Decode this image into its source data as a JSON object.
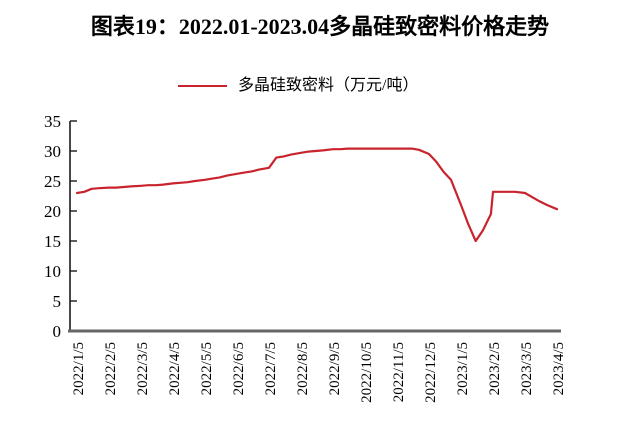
{
  "title": "图表19：2022.01-2023.04多晶硅致密料价格走势",
  "legend": {
    "label": "多晶硅致密料（万元/吨）",
    "swatch_color": "#C9242D"
  },
  "colors": {
    "line": "#C9242D",
    "y_axis": "#1a1a1a",
    "x_baseline": "#666666",
    "text": "#000000",
    "background": "#ffffff"
  },
  "chart_data": {
    "type": "line",
    "title": "图表19：2022.01-2023.04多晶硅致密料价格走势",
    "unit": "万元/吨",
    "grid": false,
    "legend_position": "top",
    "ylim": [
      0,
      35
    ],
    "yticks": [
      0,
      5,
      10,
      15,
      20,
      25,
      30,
      35
    ],
    "x_tick_labels": [
      "2022/1/5",
      "2022/2/5",
      "2022/3/5",
      "2022/4/5",
      "2022/5/5",
      "2022/6/5",
      "2022/7/5",
      "2022/8/5",
      "2022/9/5",
      "2022/10/5",
      "2022/11/5",
      "2022/12/5",
      "2023/1/5",
      "2023/2/5",
      "2023/3/5",
      "2023/4/5"
    ],
    "series": [
      {
        "name": "多晶硅致密料（万元/吨）",
        "color": "#C9242D",
        "x": [
          "2022/1/5",
          "2022/1/12",
          "2022/1/19",
          "2022/1/26",
          "2022/2/5",
          "2022/2/12",
          "2022/2/19",
          "2022/2/26",
          "2022/3/5",
          "2022/3/12",
          "2022/3/19",
          "2022/3/26",
          "2022/4/5",
          "2022/4/12",
          "2022/4/19",
          "2022/4/26",
          "2022/5/5",
          "2022/5/12",
          "2022/5/19",
          "2022/5/26",
          "2022/6/5",
          "2022/6/12",
          "2022/6/19",
          "2022/6/26",
          "2022/7/5",
          "2022/7/12",
          "2022/7/19",
          "2022/7/26",
          "2022/8/5",
          "2022/8/12",
          "2022/8/19",
          "2022/8/26",
          "2022/9/5",
          "2022/9/12",
          "2022/9/19",
          "2022/9/26",
          "2022/10/5",
          "2022/10/12",
          "2022/10/19",
          "2022/10/26",
          "2022/11/5",
          "2022/11/12",
          "2022/11/19",
          "2022/11/26",
          "2022/12/5",
          "2022/12/12",
          "2022/12/19",
          "2022/12/26",
          "2023/1/5",
          "2023/1/12",
          "2023/1/19",
          "2023/1/26",
          "2023/2/3",
          "2023/2/5",
          "2023/2/12",
          "2023/2/19",
          "2023/2/26",
          "2023/3/5",
          "2023/3/12",
          "2023/3/19",
          "2023/3/26",
          "2023/4/5"
        ],
        "values": [
          23.0,
          23.2,
          23.7,
          23.8,
          23.9,
          23.9,
          24.0,
          24.1,
          24.2,
          24.3,
          24.3,
          24.4,
          24.6,
          24.7,
          24.8,
          25.0,
          25.2,
          25.4,
          25.6,
          25.9,
          26.2,
          26.4,
          26.6,
          26.9,
          27.2,
          28.9,
          29.1,
          29.4,
          29.7,
          29.9,
          30.0,
          30.1,
          30.3,
          30.3,
          30.4,
          30.4,
          30.4,
          30.4,
          30.4,
          30.4,
          30.4,
          30.4,
          30.4,
          30.2,
          29.5,
          28.2,
          26.5,
          25.2,
          21.0,
          17.8,
          15.0,
          16.8,
          19.5,
          23.2,
          23.2,
          23.2,
          23.2,
          23.0,
          22.3,
          21.6,
          21.0,
          20.3
        ]
      }
    ]
  }
}
